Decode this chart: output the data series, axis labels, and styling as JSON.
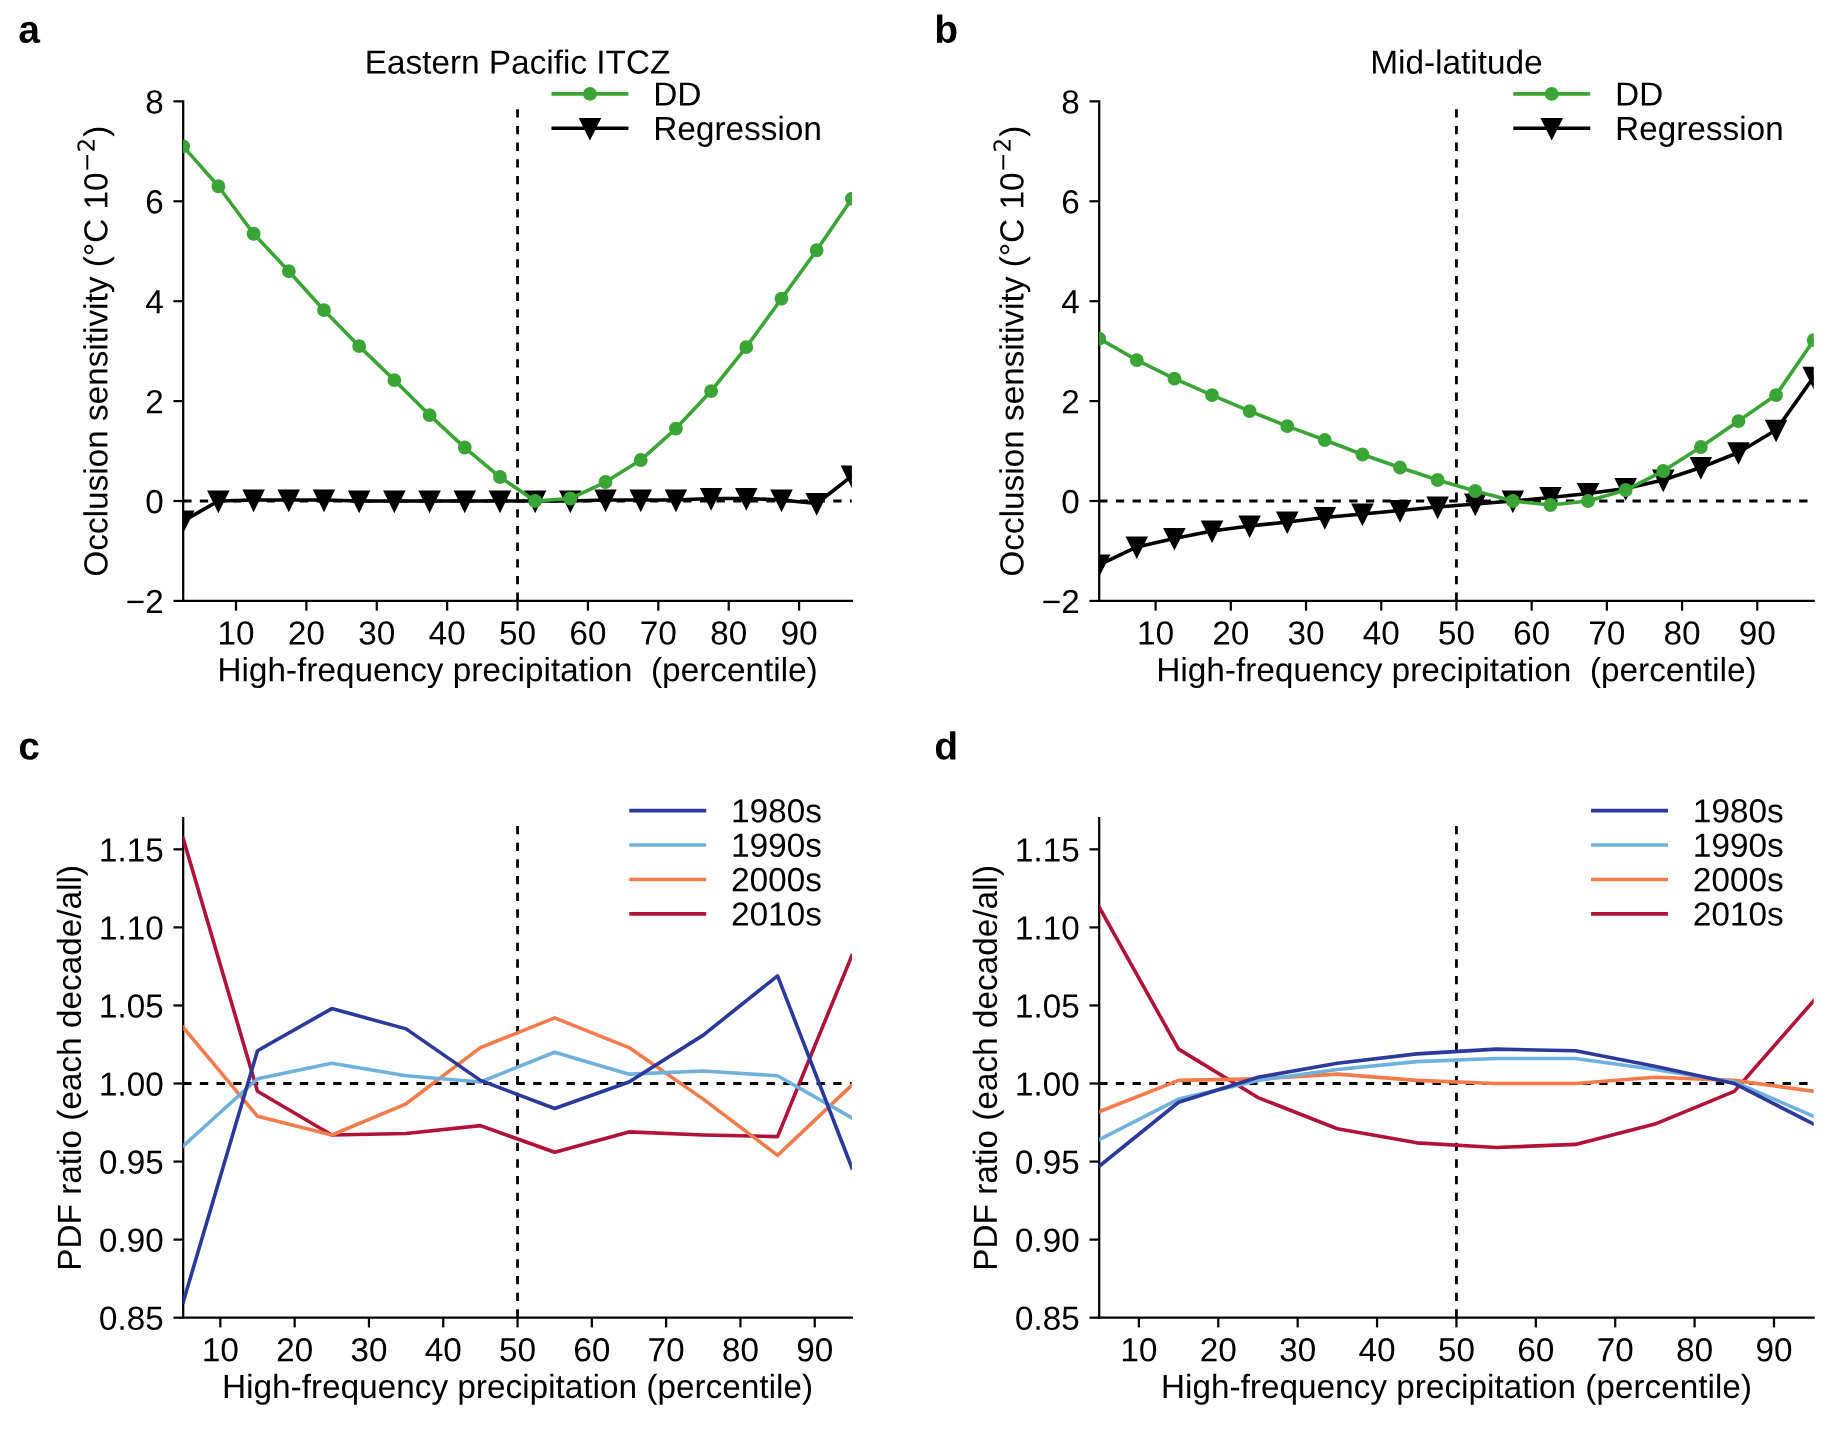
{
  "chart_data": [
    {
      "type": "line",
      "title": "Eastern Pacific ITCZ",
      "annotations": [
        "a"
      ],
      "xlabel": "High-frequency precipitation  (percentile)",
      "ylabel": "Occlusion sensitivity (°C 10$^{−2}$)",
      "x": [
        2.5,
        7.5,
        12.5,
        17.5,
        22.5,
        27.5,
        32.5,
        37.5,
        42.5,
        47.5,
        52.5,
        57.5,
        62.5,
        67.5,
        72.5,
        77.5,
        82.5,
        87.5,
        92.5,
        97.5
      ],
      "series": [
        {
          "name": "DD",
          "color": "#3aa535",
          "marker": "circle",
          "values": [
            7.1,
            6.3,
            5.35,
            4.6,
            3.82,
            3.1,
            2.42,
            1.72,
            1.07,
            0.48,
            0.0,
            0.05,
            0.38,
            0.82,
            1.45,
            2.2,
            3.08,
            4.05,
            5.02,
            6.05
          ]
        },
        {
          "name": "Regression",
          "color": "#000000",
          "marker": "triangle",
          "values": [
            -0.4,
            0.0,
            0.02,
            0.02,
            0.02,
            0.0,
            0.0,
            0.0,
            0.0,
            0.0,
            0.0,
            0.0,
            0.02,
            0.02,
            0.02,
            0.05,
            0.05,
            0.02,
            -0.05,
            0.5
          ]
        }
      ],
      "xlim": [
        2.5,
        97.5
      ],
      "xticks": [
        10,
        20,
        30,
        40,
        50,
        60,
        70,
        80,
        90
      ],
      "ylim": [
        -2,
        8
      ],
      "yticks": [
        {
          "value": -2,
          "label": "−2"
        },
        0,
        2,
        4,
        6,
        8
      ],
      "ref_lines": [
        {
          "axis": "x",
          "value": 50,
          "color": "#000000",
          "line_style": "dashed"
        },
        {
          "axis": "y",
          "value": 0,
          "color": "#000000",
          "line_style": "dashed"
        }
      ],
      "legend": "top right",
      "grid": false
    },
    {
      "type": "line",
      "title": "Mid-latitude",
      "annotations": [
        "b"
      ],
      "xlabel": "High-frequency precipitation  (percentile)",
      "ylabel": "Occlusion sensitivity (°C 10$^{−2}$)",
      "x": [
        2.5,
        7.5,
        12.5,
        17.5,
        22.5,
        27.5,
        32.5,
        37.5,
        42.5,
        47.5,
        52.5,
        57.5,
        62.5,
        67.5,
        72.5,
        77.5,
        82.5,
        87.5,
        92.5,
        97.5
      ],
      "series": [
        {
          "name": "DD",
          "color": "#3aa535",
          "marker": "circle",
          "values": [
            3.25,
            2.82,
            2.45,
            2.12,
            1.8,
            1.5,
            1.22,
            0.93,
            0.67,
            0.42,
            0.2,
            0.0,
            -0.08,
            0.0,
            0.22,
            0.6,
            1.08,
            1.6,
            2.12,
            3.22
          ]
        },
        {
          "name": "Regression",
          "color": "#000000",
          "marker": "triangle",
          "values": [
            -1.28,
            -0.92,
            -0.75,
            -0.6,
            -0.5,
            -0.42,
            -0.33,
            -0.26,
            -0.19,
            -0.12,
            -0.06,
            0.0,
            0.07,
            0.15,
            0.25,
            0.42,
            0.67,
            0.97,
            1.42,
            2.48
          ]
        }
      ],
      "xlim": [
        2.5,
        97.5
      ],
      "xticks": [
        10,
        20,
        30,
        40,
        50,
        60,
        70,
        80,
        90
      ],
      "ylim": [
        -2,
        8
      ],
      "yticks": [
        {
          "value": -2,
          "label": "−2"
        },
        0,
        2,
        4,
        6,
        8
      ],
      "ref_lines": [
        {
          "axis": "x",
          "value": 50,
          "color": "#000000",
          "line_style": "dashed"
        },
        {
          "axis": "y",
          "value": 0,
          "color": "#000000",
          "line_style": "dashed"
        }
      ],
      "legend": "top right",
      "grid": false
    },
    {
      "type": "line",
      "annotations": [
        "c"
      ],
      "xlabel": "High-frequency precipitation (percentile)",
      "ylabel": "PDF ratio (each decade/all)",
      "x": [
        5,
        15,
        25,
        35,
        45,
        55,
        65,
        75,
        85,
        95
      ],
      "series": [
        {
          "name": "1980s",
          "color": "#2b3a9a",
          "values": [
            0.86,
            1.021,
            1.048,
            1.035,
            1.002,
            0.984,
            1.001,
            1.031,
            1.069,
            0.946
          ]
        },
        {
          "name": "1990s",
          "color": "#6fb1dd",
          "values": [
            0.96,
            1.003,
            1.013,
            1.005,
            1.001,
            1.02,
            1.006,
            1.008,
            1.005,
            0.978
          ]
        },
        {
          "name": "2000s",
          "color": "#f57b4a",
          "values": [
            1.036,
            0.979,
            0.967,
            0.987,
            1.023,
            1.042,
            1.023,
            0.99,
            0.954,
            0.999
          ]
        },
        {
          "name": "2010s",
          "color": "#b0123a",
          "values": [
            1.157,
            0.995,
            0.967,
            0.968,
            0.973,
            0.956,
            0.969,
            0.967,
            0.966,
            1.082
          ]
        }
      ],
      "xlim": [
        5,
        95
      ],
      "xticks": [
        10,
        20,
        30,
        40,
        50,
        60,
        70,
        80,
        90
      ],
      "ylim": [
        0.85,
        1.17
      ],
      "yticks": [
        {
          "value": 0.85,
          "label": "0.85"
        },
        {
          "value": 0.9,
          "label": "0.90"
        },
        {
          "value": 0.95,
          "label": "0.95"
        },
        {
          "value": 1.0,
          "label": "1.00"
        },
        {
          "value": 1.05,
          "label": "1.05"
        },
        {
          "value": 1.1,
          "label": "1.10"
        },
        {
          "value": 1.15,
          "label": "1.15"
        }
      ],
      "ref_lines": [
        {
          "axis": "x",
          "value": 50,
          "color": "#000000",
          "line_style": "dashed"
        },
        {
          "axis": "y",
          "value": 1.0,
          "color": "#000000",
          "line_style": "dashed"
        }
      ],
      "legend": "top right",
      "grid": false
    },
    {
      "type": "line",
      "annotations": [
        "d"
      ],
      "xlabel": "High-frequency precipitation (percentile)",
      "ylabel": "PDF ratio (each decade/all)",
      "x": [
        5,
        15,
        25,
        35,
        45,
        55,
        65,
        75,
        85,
        95
      ],
      "series": [
        {
          "name": "1980s",
          "color": "#2b3a9a",
          "values": [
            0.947,
            0.988,
            1.004,
            1.013,
            1.019,
            1.022,
            1.021,
            1.011,
            1.0,
            0.974
          ]
        },
        {
          "name": "1990s",
          "color": "#6fb1dd",
          "values": [
            0.964,
            0.99,
            1.002,
            1.009,
            1.014,
            1.016,
            1.016,
            1.009,
            1.001,
            0.979
          ]
        },
        {
          "name": "2000s",
          "color": "#f57b4a",
          "values": [
            0.982,
            1.002,
            1.003,
            1.006,
            1.002,
            1.0,
            1.0,
            1.004,
            1.002,
            0.995
          ]
        },
        {
          "name": "2010s",
          "color": "#b0123a",
          "values": [
            1.113,
            1.022,
            0.991,
            0.971,
            0.962,
            0.959,
            0.961,
            0.974,
            0.995,
            1.053
          ]
        }
      ],
      "xlim": [
        5,
        95
      ],
      "xticks": [
        10,
        20,
        30,
        40,
        50,
        60,
        70,
        80,
        90
      ],
      "ylim": [
        0.85,
        1.17
      ],
      "yticks": [
        {
          "value": 0.85,
          "label": "0.85"
        },
        {
          "value": 0.9,
          "label": "0.90"
        },
        {
          "value": 0.95,
          "label": "0.95"
        },
        {
          "value": 1.0,
          "label": "1.00"
        },
        {
          "value": 1.05,
          "label": "1.05"
        },
        {
          "value": 1.1,
          "label": "1.10"
        },
        {
          "value": 1.15,
          "label": "1.15"
        }
      ],
      "ref_lines": [
        {
          "axis": "x",
          "value": 50,
          "color": "#000000",
          "line_style": "dashed"
        },
        {
          "axis": "y",
          "value": 1.0,
          "color": "#000000",
          "line_style": "dashed"
        }
      ],
      "legend": "top right",
      "grid": false
    }
  ]
}
